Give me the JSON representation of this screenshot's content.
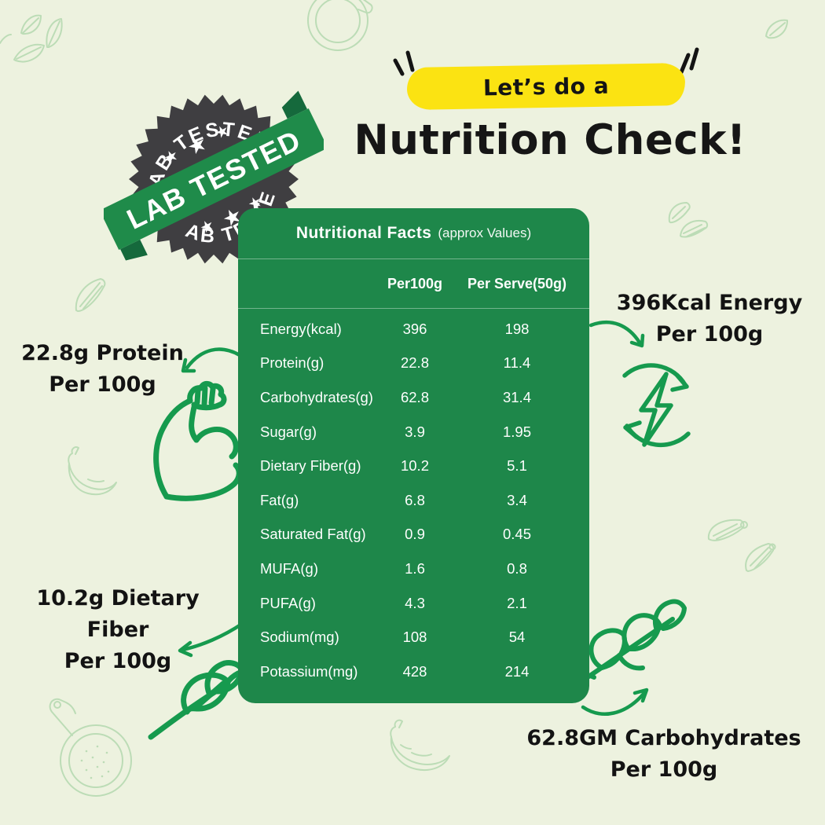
{
  "header": {
    "eyebrow_label": "Let’s do a",
    "title": "Nutrition Check!"
  },
  "badge": {
    "top_arc_label": "LAB TESTED",
    "bottom_arc_label": "LAB TESTED",
    "ribbon_label": "LAB TESTED",
    "star": "★"
  },
  "table": {
    "title": "Nutritional Facts",
    "subtitle": "(approx Values)",
    "columns": [
      "Per100g",
      "Per Serve(50g)"
    ],
    "rows": [
      {
        "label": "Energy(kcal)",
        "per100g": "396",
        "per_serve": "198"
      },
      {
        "label": "Protein(g)",
        "per100g": "22.8",
        "per_serve": "11.4"
      },
      {
        "label": "Carbohydrates(g)",
        "per100g": "62.8",
        "per_serve": "31.4"
      },
      {
        "label": "Sugar(g)",
        "per100g": "3.9",
        "per_serve": "1.95"
      },
      {
        "label": "Dietary Fiber(g)",
        "per100g": "10.2",
        "per_serve": "5.1"
      },
      {
        "label": "Fat(g)",
        "per100g": "6.8",
        "per_serve": "3.4"
      },
      {
        "label": "Saturated Fat(g)",
        "per100g": "0.9",
        "per_serve": "0.45"
      },
      {
        "label": "MUFA(g)",
        "per100g": "1.6",
        "per_serve": "0.8"
      },
      {
        "label": "PUFA(g)",
        "per100g": "4.3",
        "per_serve": "2.1"
      },
      {
        "label": "Sodium(mg)",
        "per100g": "108",
        "per_serve": "54"
      },
      {
        "label": "Potassium(mg)",
        "per100g": "428",
        "per_serve": "214"
      }
    ]
  },
  "callouts": {
    "protein": {
      "line1": "22.8g Protein",
      "line2": "Per 100g"
    },
    "energy": {
      "line1": "396Kcal Energy",
      "line2": "Per 100g"
    },
    "fiber": {
      "line1": "10.2g Dietary Fiber",
      "line2": "Per 100g"
    },
    "carbs": {
      "line1": "62.8GM Carbohydrates",
      "line2": "Per 100g"
    }
  },
  "colors": {
    "background": "#EDF2DF",
    "table_green": "#1E874A",
    "icon_green": "#169A4E",
    "badge_gray": "#3F3E41",
    "highlight_yellow": "#FBE312",
    "faint_outline_green": "#BCDCB6",
    "text_black": "#141414"
  }
}
